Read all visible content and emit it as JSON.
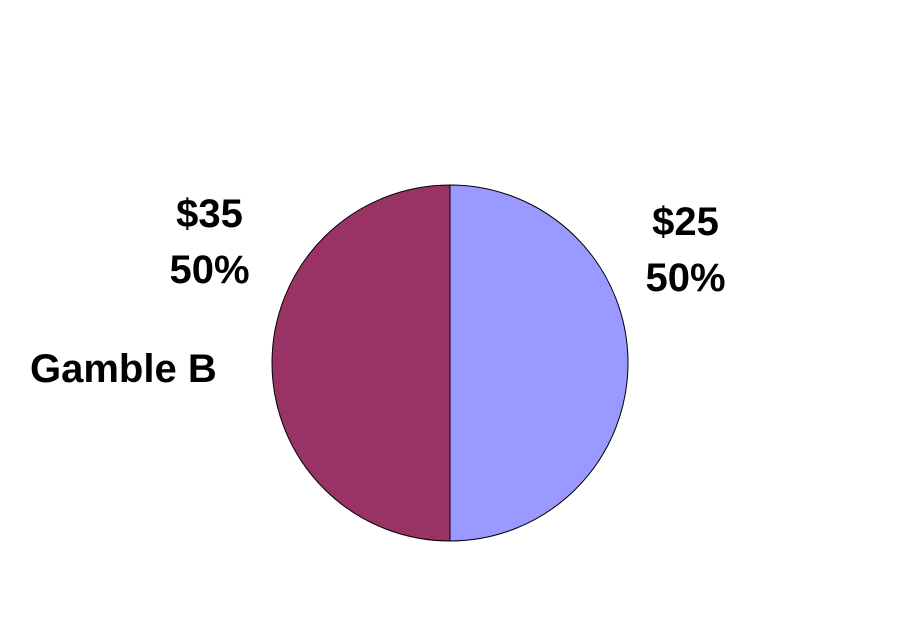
{
  "chart_data": {
    "type": "pie",
    "title": "",
    "series_label": "Gamble B",
    "slices": [
      {
        "label": "$25",
        "percent_label": "50%",
        "value": 50,
        "color": "#9999FF"
      },
      {
        "label": "$35",
        "percent_label": "50%",
        "value": 50,
        "color": "#993366"
      }
    ],
    "start_angle_deg": 0,
    "direction": "clockwise",
    "legend": "none"
  }
}
